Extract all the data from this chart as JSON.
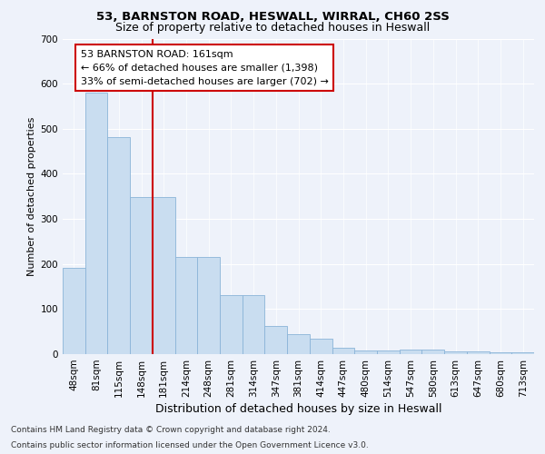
{
  "title_line1": "53, BARNSTON ROAD, HESWALL, WIRRAL, CH60 2SS",
  "title_line2": "Size of property relative to detached houses in Heswall",
  "xlabel": "Distribution of detached houses by size in Heswall",
  "ylabel": "Number of detached properties",
  "categories": [
    "48sqm",
    "81sqm",
    "115sqm",
    "148sqm",
    "181sqm",
    "214sqm",
    "248sqm",
    "281sqm",
    "314sqm",
    "347sqm",
    "381sqm",
    "414sqm",
    "447sqm",
    "480sqm",
    "514sqm",
    "547sqm",
    "580sqm",
    "613sqm",
    "647sqm",
    "680sqm",
    "713sqm"
  ],
  "values": [
    192,
    581,
    481,
    348,
    348,
    216,
    216,
    130,
    130,
    62,
    45,
    35,
    15,
    8,
    8,
    10,
    10,
    6,
    6,
    4,
    4
  ],
  "bar_color": "#c9ddf0",
  "bar_edge_color": "#8ab4d8",
  "ref_line_color": "#cc0000",
  "ref_line_x": 3.5,
  "annotation_text": "53 BARNSTON ROAD: 161sqm\n← 66% of detached houses are smaller (1,398)\n33% of semi-detached houses are larger (702) →",
  "annotation_box_facecolor": "#ffffff",
  "annotation_box_edgecolor": "#cc0000",
  "ylim": [
    0,
    700
  ],
  "yticks": [
    0,
    100,
    200,
    300,
    400,
    500,
    600,
    700
  ],
  "footer_line1": "Contains HM Land Registry data © Crown copyright and database right 2024.",
  "footer_line2": "Contains public sector information licensed under the Open Government Licence v3.0.",
  "bg_color": "#eef2fa",
  "plot_bg_color": "#eef2fa",
  "title1_fontsize": 9.5,
  "title2_fontsize": 9,
  "ylabel_fontsize": 8,
  "xlabel_fontsize": 9,
  "tick_fontsize": 7.5,
  "annot_fontsize": 8,
  "footer_fontsize": 6.5
}
